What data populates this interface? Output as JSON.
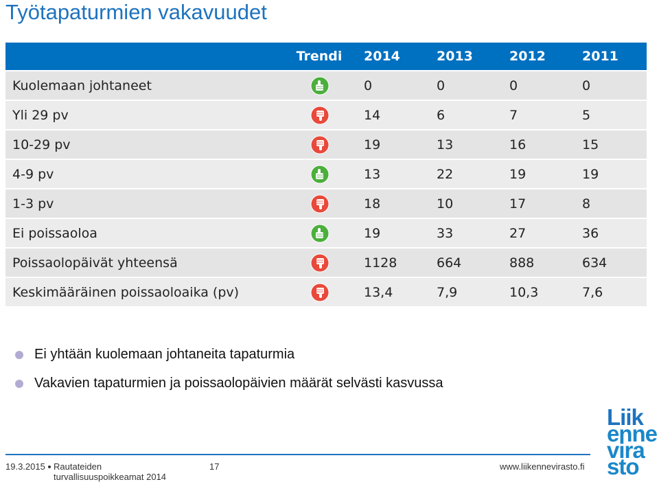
{
  "title": "Työtapaturmien vakavuudet",
  "table": {
    "header": [
      "Trendi",
      "2014",
      "2013",
      "2012",
      "2011"
    ],
    "rows": [
      {
        "label": "Kuolemaan johtaneet",
        "trend": "up",
        "values": [
          0,
          0,
          0,
          0
        ]
      },
      {
        "label": "Yli 29 pv",
        "trend": "down",
        "values": [
          14,
          6,
          7,
          5
        ]
      },
      {
        "label": "10-29 pv",
        "trend": "down",
        "values": [
          19,
          13,
          16,
          15
        ]
      },
      {
        "label": "4-9 pv",
        "trend": "up",
        "values": [
          13,
          22,
          19,
          19
        ]
      },
      {
        "label": "1-3 pv",
        "trend": "down",
        "values": [
          18,
          10,
          17,
          8
        ]
      },
      {
        "label": "Ei poissaoloa",
        "trend": "up",
        "values": [
          19,
          33,
          27,
          36
        ]
      },
      {
        "label": "Poissaolopäivät yhteensä",
        "trend": "down",
        "values": [
          1128,
          664,
          888,
          634
        ]
      },
      {
        "label": "Keskimääräinen poissaoloaika (pv)",
        "trend": "down",
        "values": [
          "13,4",
          "7,9",
          "10,3",
          "7,6"
        ]
      }
    ]
  },
  "bullets": [
    "Ei yhtään kuolemaan johtaneita tapaturmia",
    "Vakavien tapaturmien ja poissaolopäivien määrät selvästi kasvussa"
  ],
  "footer": {
    "date": "19.3.2015",
    "source": [
      "Rautateiden",
      "turvallisuuspoikkeamat 2014"
    ],
    "page": "17",
    "url": "www.liikennevirasto.fi"
  },
  "logo": [
    "Liik",
    "enne",
    "vira",
    "sto"
  ]
}
